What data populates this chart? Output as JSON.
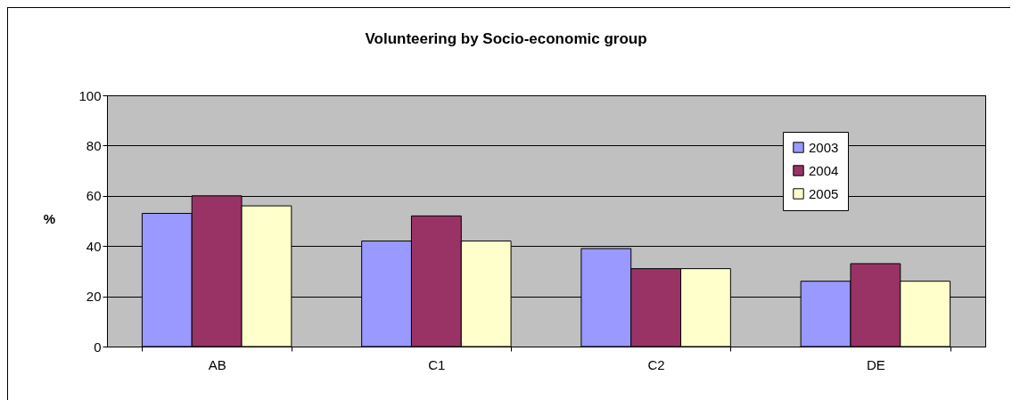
{
  "chart_data": {
    "type": "bar",
    "title": "Volunteering by Socio-economic group",
    "ylabel": "%",
    "categories": [
      "AB",
      "C1",
      "C2",
      "DE"
    ],
    "series": [
      {
        "name": "2003",
        "color": "#9999ff",
        "values": [
          53,
          42,
          39,
          26
        ]
      },
      {
        "name": "2004",
        "color": "#993366",
        "values": [
          60,
          52,
          31,
          33
        ]
      },
      {
        "name": "2005",
        "color": "#ffffcc",
        "values": [
          56,
          42,
          31,
          26
        ]
      }
    ],
    "ylim": [
      0,
      100
    ],
    "yticks": [
      0,
      20,
      40,
      60,
      80,
      100
    ],
    "grid": "y",
    "legend": "top right"
  }
}
